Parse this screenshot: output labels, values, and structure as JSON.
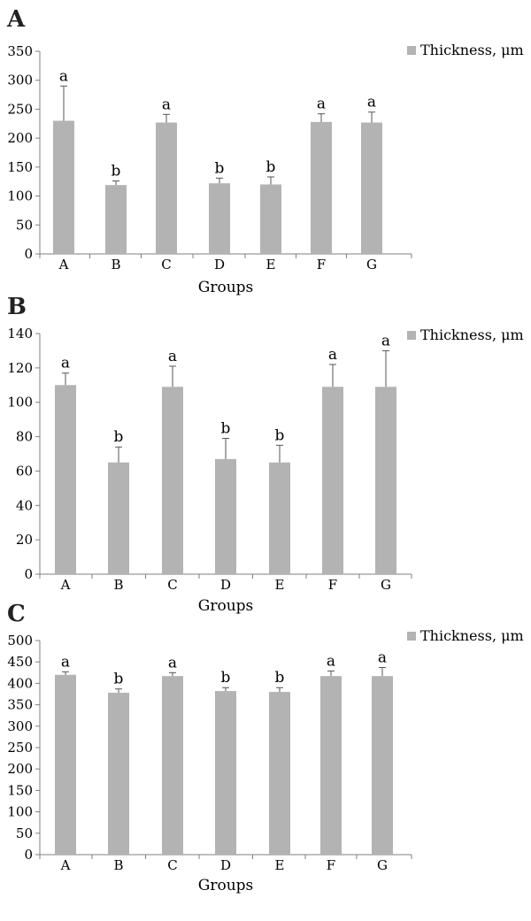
{
  "chart_data": [
    {
      "panel_label": "A",
      "type": "bar",
      "categories": [
        "A",
        "B",
        "C",
        "D",
        "E",
        "F",
        "G"
      ],
      "series": [
        {
          "name": "Thickness, μm",
          "values": [
            230,
            119,
            227,
            122,
            120,
            228,
            227
          ],
          "error": [
            60,
            7,
            14,
            9,
            13,
            14,
            18
          ],
          "significance": [
            "a",
            "b",
            "a",
            "b",
            "b",
            "a",
            "a"
          ]
        }
      ],
      "xlabel": "Groups",
      "ylabel": "",
      "ylim": [
        0,
        350
      ],
      "yticks": [
        0,
        50,
        100,
        150,
        200,
        250,
        300,
        350
      ],
      "grid": false,
      "legend": "top-right",
      "bar_color": "#b3b3b3"
    },
    {
      "panel_label": "B",
      "type": "bar",
      "categories": [
        "A",
        "B",
        "C",
        "D",
        "E",
        "F",
        "G"
      ],
      "series": [
        {
          "name": "Thickness, μm",
          "values": [
            110,
            65,
            109,
            67,
            65,
            109,
            109
          ],
          "error": [
            7,
            9,
            12,
            12,
            10,
            13,
            21
          ],
          "significance": [
            "a",
            "b",
            "a",
            "b",
            "b",
            "a",
            "a"
          ]
        }
      ],
      "xlabel": "Groups",
      "ylabel": "",
      "ylim": [
        0,
        140
      ],
      "yticks": [
        0,
        20,
        40,
        60,
        80,
        100,
        120,
        140
      ],
      "grid": false,
      "legend": "top-right",
      "bar_color": "#b3b3b3"
    },
    {
      "panel_label": "C",
      "type": "bar",
      "categories": [
        "A",
        "B",
        "C",
        "D",
        "E",
        "F",
        "G"
      ],
      "series": [
        {
          "name": "Thickness, μm",
          "values": [
            420,
            378,
            417,
            382,
            380,
            417,
            417
          ],
          "error": [
            7,
            9,
            8,
            8,
            10,
            12,
            20
          ],
          "significance": [
            "a",
            "b",
            "a",
            "b",
            "b",
            "a",
            "a"
          ]
        }
      ],
      "xlabel": "Groups",
      "ylabel": "",
      "ylim": [
        0,
        500
      ],
      "yticks": [
        0,
        50,
        100,
        150,
        200,
        250,
        300,
        350,
        400,
        450,
        500
      ],
      "grid": false,
      "legend": "top-right",
      "bar_color": "#b3b3b3"
    }
  ]
}
